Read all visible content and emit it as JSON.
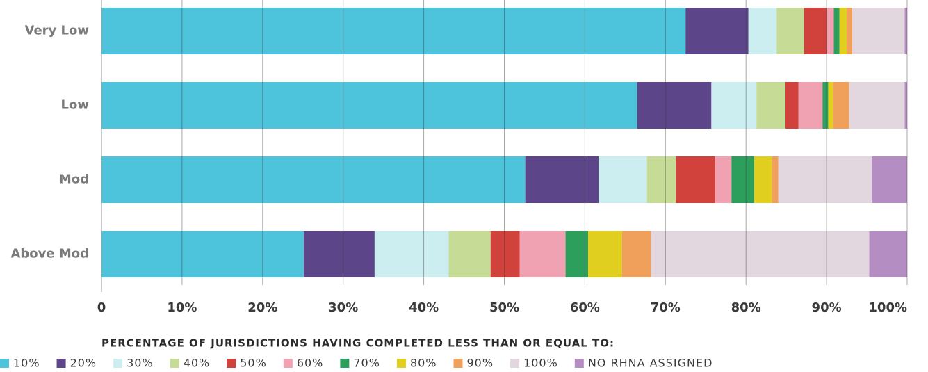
{
  "chart_data": {
    "type": "stacked-barh",
    "categories": [
      "Very Low",
      "Low",
      "Mod",
      "Above Mod"
    ],
    "series": [
      {
        "name": "10%",
        "color": "#4dc4dc",
        "values": [
          72.5,
          66.5,
          52.6,
          25.1
        ]
      },
      {
        "name": "20%",
        "color": "#5c4589",
        "values": [
          7.8,
          9.2,
          9.1,
          8.8
        ]
      },
      {
        "name": "30%",
        "color": "#cdeef0",
        "values": [
          3.5,
          5.6,
          6.0,
          9.2
        ]
      },
      {
        "name": "40%",
        "color": "#c6dc96",
        "values": [
          3.4,
          3.6,
          3.6,
          5.2
        ]
      },
      {
        "name": "50%",
        "color": "#d0423b",
        "values": [
          2.8,
          1.6,
          4.9,
          3.6
        ]
      },
      {
        "name": "60%",
        "color": "#f0a1b2",
        "values": [
          0.9,
          3.0,
          2.0,
          5.7
        ]
      },
      {
        "name": "70%",
        "color": "#2c9f5c",
        "values": [
          0.7,
          0.7,
          2.8,
          2.8
        ]
      },
      {
        "name": "80%",
        "color": "#e0cf1f",
        "values": [
          0.9,
          0.6,
          2.2,
          4.2
        ]
      },
      {
        "name": "90%",
        "color": "#f0a05a",
        "values": [
          0.7,
          2.0,
          0.8,
          3.6
        ]
      },
      {
        "name": "100%",
        "color": "#e3d7df",
        "values": [
          6.5,
          6.9,
          11.6,
          27.1
        ]
      },
      {
        "name": "NO RHNA ASSIGNED",
        "color": "#b48dc2",
        "values": [
          0.3,
          0.3,
          4.4,
          4.7
        ]
      }
    ],
    "xlim": [
      0,
      100
    ],
    "xticks": [
      0,
      {
        "value": 10,
        "label": "10%"
      },
      {
        "value": 20,
        "label": "20%"
      },
      {
        "value": 30,
        "label": "30%"
      },
      {
        "value": 40,
        "label": "40%"
      },
      {
        "value": 50,
        "label": "50%"
      },
      {
        "value": 60,
        "label": "60%"
      },
      {
        "value": 70,
        "label": "70%"
      },
      {
        "value": 80,
        "label": "80%"
      },
      {
        "value": 90,
        "label": "90%"
      },
      {
        "value": 100,
        "label": "100%"
      }
    ],
    "grid": true,
    "legend_title": "PERCENTAGE OF JURISDICTIONS HAVING COMPLETED LESS THAN OR EQUAL TO:"
  }
}
